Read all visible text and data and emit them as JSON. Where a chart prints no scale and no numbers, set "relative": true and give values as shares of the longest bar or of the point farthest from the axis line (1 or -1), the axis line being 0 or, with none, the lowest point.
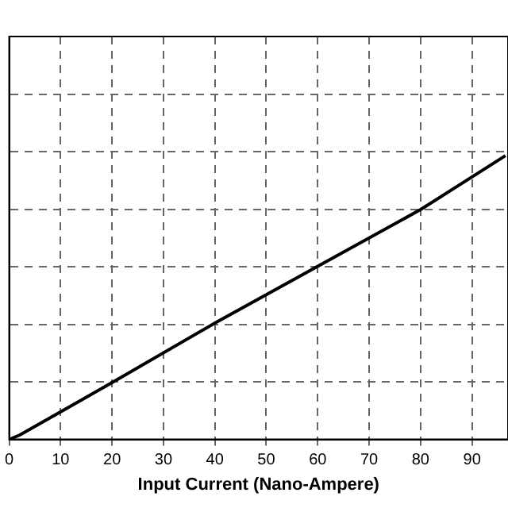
{
  "chart_data": {
    "type": "line",
    "xlabel": "Input Current (Nano-Ampere)",
    "relative": true,
    "series": [
      {
        "color": "#000000",
        "x": [
          0,
          2,
          20,
          40,
          60,
          80,
          96.5
        ],
        "values": [
          0,
          0.015,
          0.2,
          0.41,
          0.61,
          0.81,
          1
        ]
      }
    ],
    "xlim": [
      0,
      97
    ],
    "xticks": [
      0,
      10,
      20,
      30,
      40,
      50,
      60,
      70,
      80,
      90
    ],
    "grid": true,
    "legend": false,
    "marker": "none",
    "line_style": "solid"
  }
}
